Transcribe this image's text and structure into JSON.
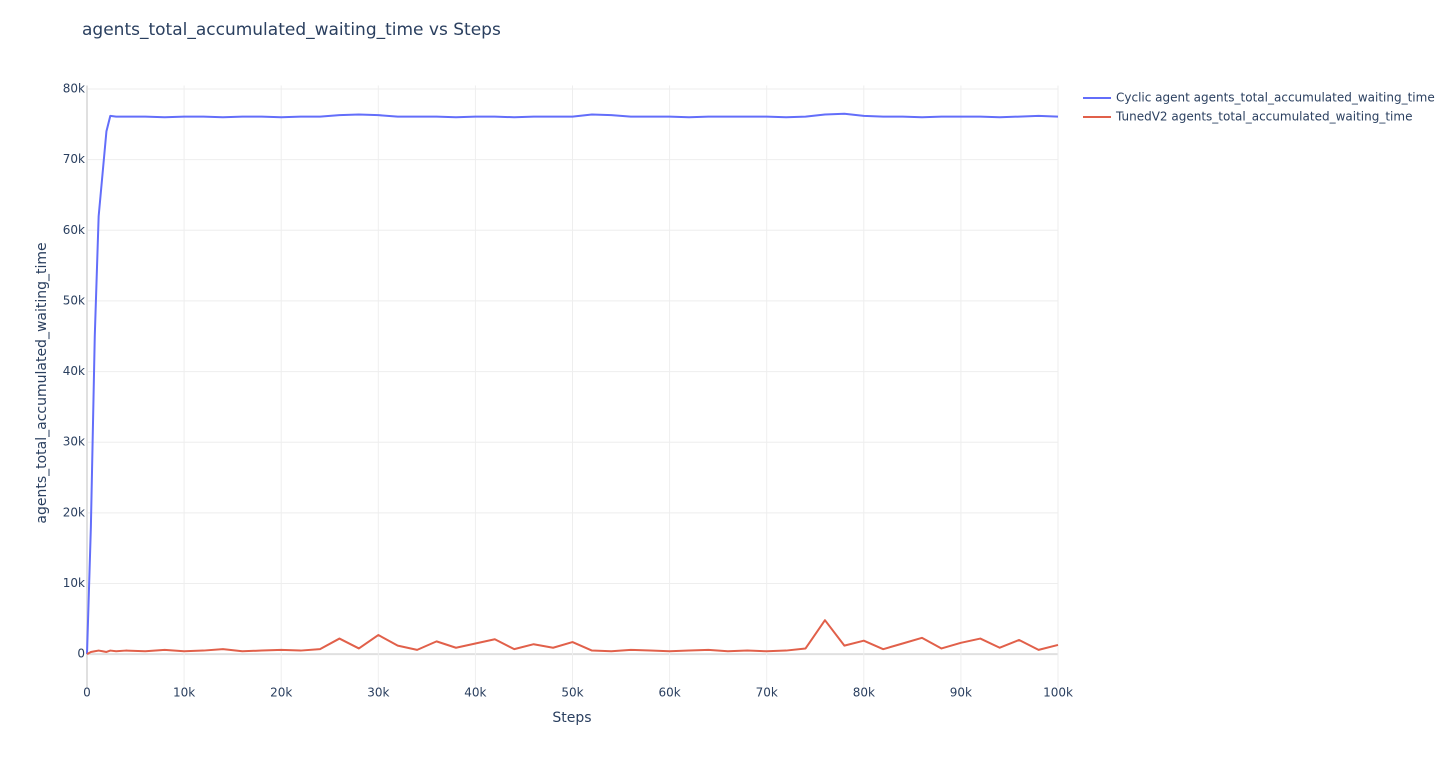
{
  "chart_data": {
    "type": "line",
    "title": "agents_total_accumulated_waiting_time vs Steps",
    "xlabel": "Steps",
    "ylabel": "agents_total_accumulated_waiting_time",
    "x": [
      0,
      400,
      800,
      1200,
      1600,
      2000,
      2400,
      3000,
      4000,
      6000,
      8000,
      10000,
      12000,
      14000,
      16000,
      18000,
      20000,
      22000,
      24000,
      26000,
      28000,
      30000,
      32000,
      34000,
      36000,
      38000,
      40000,
      42000,
      44000,
      46000,
      48000,
      50000,
      52000,
      54000,
      56000,
      58000,
      60000,
      62000,
      64000,
      66000,
      68000,
      70000,
      72000,
      74000,
      76000,
      78000,
      80000,
      82000,
      84000,
      86000,
      88000,
      90000,
      92000,
      94000,
      96000,
      98000,
      100000
    ],
    "series": [
      {
        "name": "Cyclic agent agents_total_accumulated_waiting_time",
        "color": "#636efa",
        "values": [
          0,
          18000,
          45000,
          62000,
          68000,
          74000,
          76200,
          76100,
          76100,
          76100,
          76000,
          76100,
          76100,
          76000,
          76100,
          76100,
          76000,
          76100,
          76100,
          76300,
          76400,
          76300,
          76100,
          76100,
          76100,
          76000,
          76100,
          76100,
          76000,
          76100,
          76100,
          76100,
          76400,
          76300,
          76100,
          76100,
          76100,
          76000,
          76100,
          76100,
          76100,
          76100,
          76000,
          76100,
          76400,
          76500,
          76200,
          76100,
          76100,
          76000,
          76100,
          76100,
          76100,
          76000,
          76100,
          76200,
          76100
        ]
      },
      {
        "name": "TunedV2 agents_total_accumulated_waiting_time",
        "color": "#e1604a",
        "values": [
          0,
          300,
          400,
          500,
          400,
          300,
          500,
          400,
          500,
          400,
          600,
          400,
          500,
          700,
          400,
          500,
          600,
          500,
          700,
          2200,
          800,
          2700,
          1200,
          600,
          1800,
          900,
          1500,
          2100,
          700,
          1400,
          900,
          1700,
          500,
          400,
          600,
          500,
          400,
          500,
          600,
          400,
          500,
          400,
          500,
          800,
          4800,
          1200,
          1900,
          700,
          1500,
          2300,
          800,
          1600,
          2200,
          900,
          2000,
          600,
          1300
        ]
      }
    ],
    "xlim": [
      0,
      100000
    ],
    "xticks": [
      0,
      {
        "value": 10000,
        "label": "10k"
      },
      {
        "value": 20000,
        "label": "20k"
      },
      {
        "value": 30000,
        "label": "30k"
      },
      {
        "value": 40000,
        "label": "40k"
      },
      {
        "value": 50000,
        "label": "50k"
      },
      {
        "value": 60000,
        "label": "60k"
      },
      {
        "value": 70000,
        "label": "70k"
      },
      {
        "value": 80000,
        "label": "80k"
      },
      {
        "value": 90000,
        "label": "90k"
      },
      {
        "value": 100000,
        "label": "100k"
      }
    ],
    "ylim": [
      -4800,
      80500
    ],
    "yticks": [
      0,
      {
        "value": 10000,
        "label": "10k"
      },
      {
        "value": 20000,
        "label": "20k"
      },
      {
        "value": 30000,
        "label": "30k"
      },
      {
        "value": 40000,
        "label": "40k"
      },
      {
        "value": 50000,
        "label": "50k"
      },
      {
        "value": 60000,
        "label": "60k"
      },
      {
        "value": 70000,
        "label": "70k"
      },
      {
        "value": 80000,
        "label": "80k"
      }
    ],
    "grid": true
  }
}
